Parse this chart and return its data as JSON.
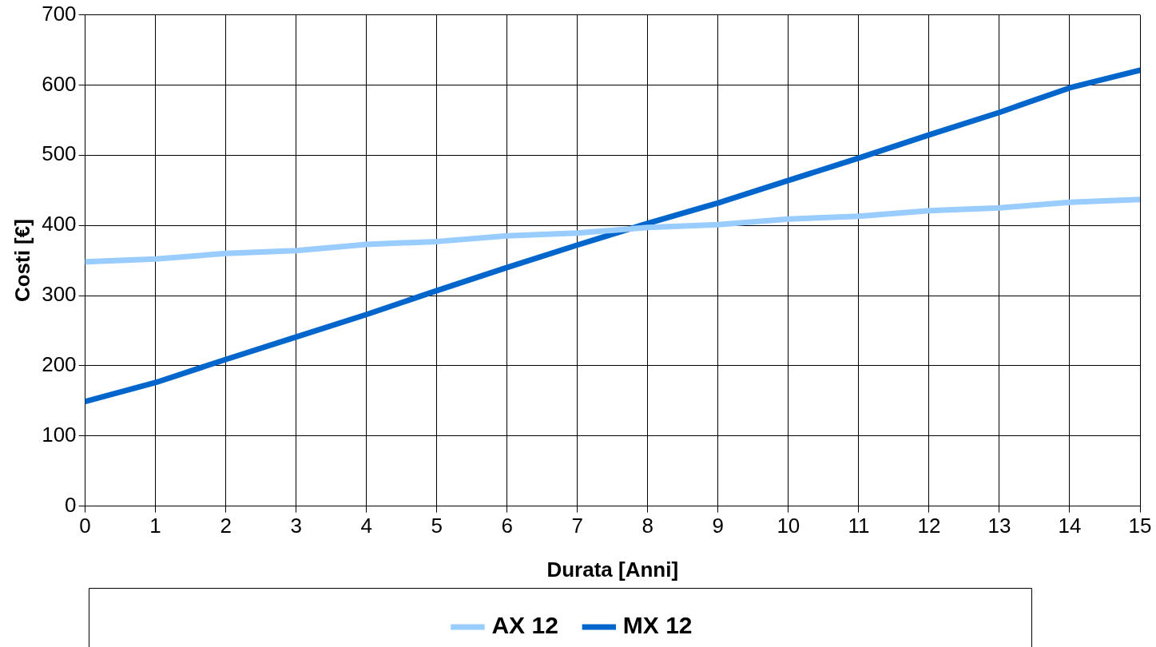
{
  "chart_data": {
    "type": "line",
    "xlabel": "Durata [Anni]",
    "ylabel": "Costi [€]",
    "x": [
      0,
      1,
      2,
      3,
      4,
      5,
      6,
      7,
      8,
      9,
      10,
      11,
      12,
      13,
      14,
      15
    ],
    "series": [
      {
        "name": "AX 12",
        "color": "#99ccff",
        "values": [
          348,
          352,
          360,
          364,
          373,
          377,
          385,
          389,
          397,
          401,
          409,
          413,
          421,
          425,
          433,
          437
        ]
      },
      {
        "name": "MX 12",
        "color": "#0066cc",
        "values": [
          149,
          176,
          209,
          241,
          273,
          307,
          340,
          372,
          403,
          432,
          464,
          496,
          529,
          561,
          596,
          621
        ]
      }
    ],
    "xlim": [
      0,
      15
    ],
    "xticks": [
      0,
      1,
      2,
      3,
      4,
      5,
      6,
      7,
      8,
      9,
      10,
      11,
      12,
      13,
      14,
      15
    ],
    "ylim": [
      0,
      700
    ],
    "yticks": [
      0,
      100,
      200,
      300,
      400,
      500,
      600,
      700
    ],
    "grid": true,
    "legend": "bottom",
    "marker": "none",
    "line_style": "solid"
  }
}
